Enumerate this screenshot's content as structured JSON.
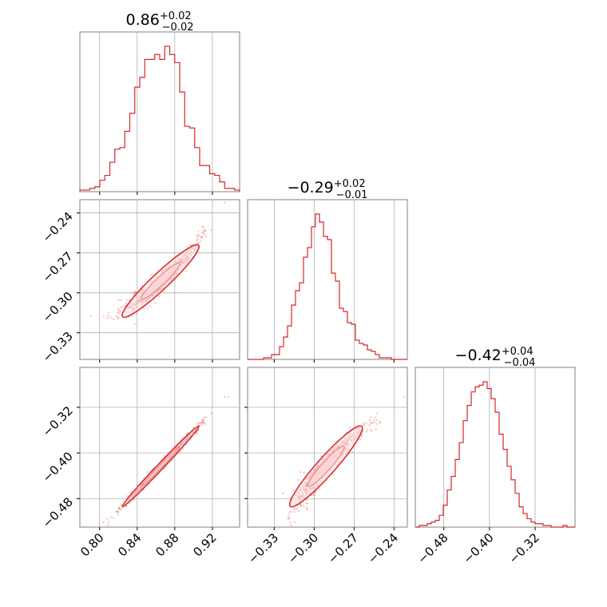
{
  "chart_data": {
    "type": "corner",
    "color": "#d62728",
    "parameters": [
      {
        "title": {
          "median": "0.86",
          "plus": "+0.02",
          "minus": "−0.02"
        },
        "range": [
          0.779,
          0.949
        ],
        "ticks": [
          0.8,
          0.84,
          0.88,
          0.92
        ],
        "tick_labels": [
          "0.80",
          "0.84",
          "0.88",
          "0.92"
        ],
        "histogram": [
          1,
          1,
          2,
          3,
          7,
          10,
          18,
          26,
          27,
          37,
          48,
          64,
          70,
          81,
          81,
          84,
          81,
          89,
          84,
          79,
          61,
          40,
          39,
          27,
          16,
          16,
          11,
          10,
          6,
          2,
          2,
          1
        ]
      },
      {
        "title": {
          "median": "−0.29",
          "plus": "+0.02",
          "minus": "−0.01"
        },
        "range": [
          -0.35,
          -0.23
        ],
        "ticks": [
          -0.33,
          -0.3,
          -0.27,
          -0.24
        ],
        "tick_labels": [
          "−0.33",
          "−0.30",
          "−0.27",
          "−0.24"
        ],
        "histogram": [
          0,
          0,
          0,
          0,
          1,
          1,
          3,
          3,
          8,
          14,
          21,
          34,
          43,
          48,
          64,
          70,
          83,
          91,
          86,
          77,
          75,
          54,
          49,
          32,
          30,
          23,
          22,
          12,
          10,
          9,
          6,
          5,
          3,
          1,
          1,
          1,
          0,
          0,
          0,
          0
        ]
      },
      {
        "title": {
          "median": "−0.42",
          "plus": "+0.04",
          "minus": "−0.04"
        },
        "range": [
          -0.53,
          -0.25
        ],
        "ticks": [
          -0.48,
          -0.4,
          -0.32
        ],
        "tick_labels": [
          "−0.48",
          "−0.40",
          "−0.32"
        ],
        "histogram": [
          0,
          1,
          1,
          2,
          3,
          4,
          7,
          13,
          22,
          30,
          40,
          50,
          63,
          72,
          80,
          83,
          84,
          86,
          82,
          76,
          68,
          55,
          46,
          36,
          28,
          20,
          12,
          8,
          5,
          3,
          2,
          2,
          1,
          1,
          0,
          0,
          0,
          1,
          0,
          0
        ]
      }
    ],
    "contour_levels": [
      0.39,
      0.86
    ],
    "grid": true
  }
}
